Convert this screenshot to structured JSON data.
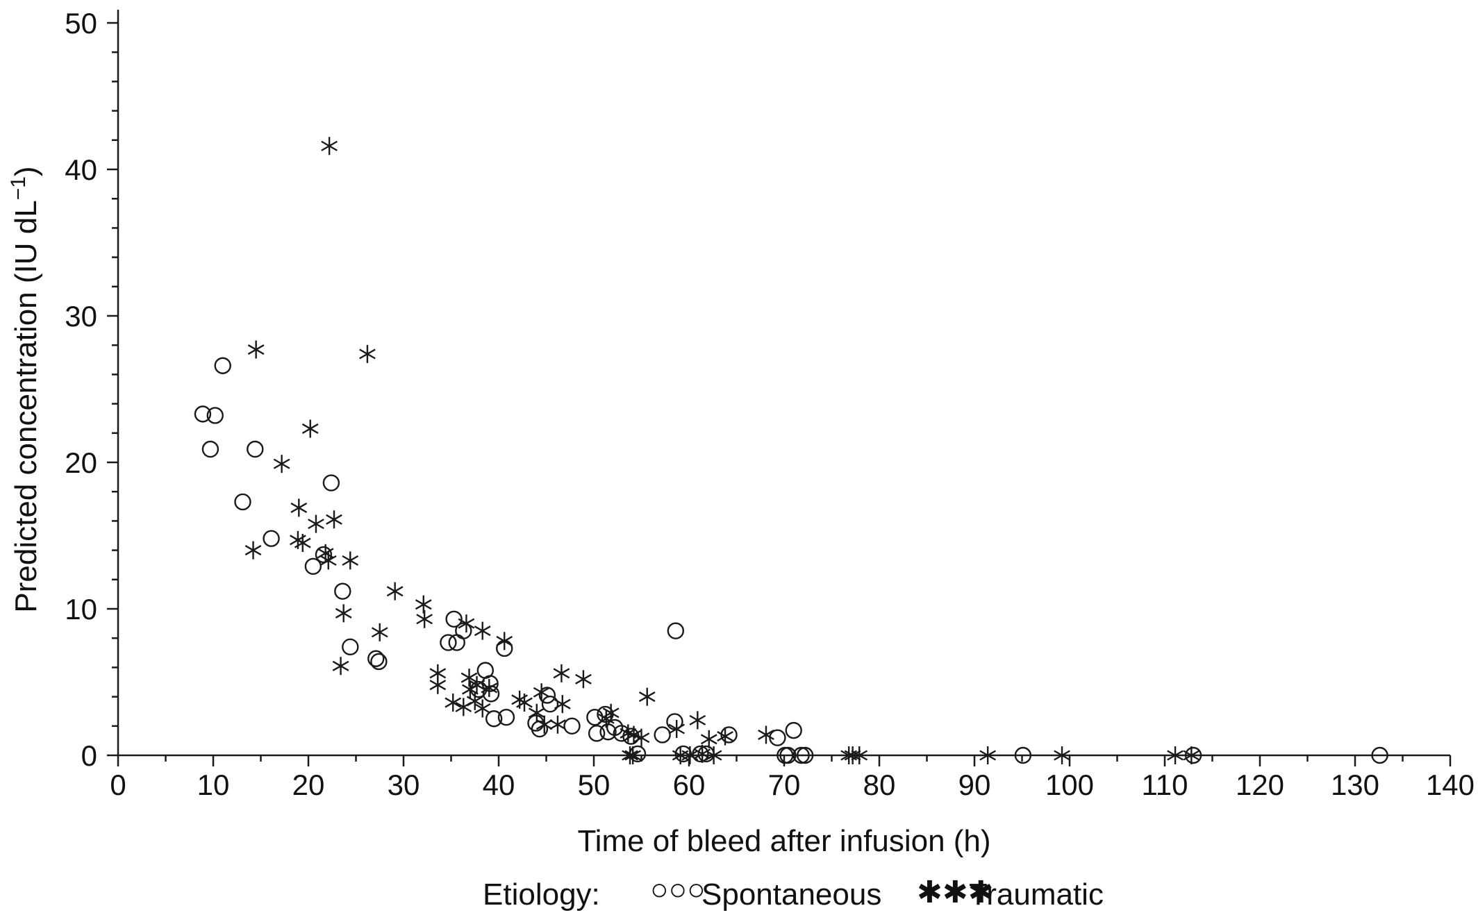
{
  "chart_data": {
    "type": "scatter",
    "title": "",
    "xlabel": "Time of bleed after infusion (h)",
    "ylabel": "Predicted concentration (IU dL",
    "ylabel_superscript": "−1",
    "ylabel_suffix": ")",
    "xlim": [
      0,
      140
    ],
    "ylim": [
      0,
      50
    ],
    "x_ticks": [
      0,
      10,
      20,
      30,
      40,
      50,
      60,
      70,
      80,
      90,
      100,
      110,
      120,
      130,
      140
    ],
    "y_ticks": [
      0,
      10,
      20,
      30,
      40,
      50
    ],
    "grid": false,
    "legend": {
      "placement": "bottom-center",
      "title": "Etiology:",
      "entries": [
        {
          "label": "Spontaneous",
          "marker_glyph": "○○○",
          "marker": "circle"
        },
        {
          "label": "Traumatic",
          "marker_glyph": "✱✱✱",
          "marker": "asterisk"
        }
      ]
    },
    "series": [
      {
        "name": "Spontaneous",
        "marker": "circle",
        "color": "#1a1a1a",
        "points": [
          [
            8.9,
            23.3
          ],
          [
            10.2,
            23.2
          ],
          [
            11.0,
            26.6
          ],
          [
            9.7,
            20.9
          ],
          [
            14.4,
            20.9
          ],
          [
            13.1,
            17.3
          ],
          [
            22.4,
            18.6
          ],
          [
            16.1,
            14.8
          ],
          [
            21.6,
            13.7
          ],
          [
            20.5,
            12.9
          ],
          [
            23.6,
            11.2
          ],
          [
            24.4,
            7.4
          ],
          [
            27.1,
            6.6
          ],
          [
            27.4,
            6.4
          ],
          [
            34.7,
            7.7
          ],
          [
            35.6,
            7.7
          ],
          [
            35.3,
            9.3
          ],
          [
            36.3,
            8.5
          ],
          [
            38.6,
            5.8
          ],
          [
            39.1,
            4.9
          ],
          [
            37.9,
            4.5
          ],
          [
            39.2,
            4.2
          ],
          [
            40.6,
            7.3
          ],
          [
            39.5,
            2.5
          ],
          [
            40.8,
            2.6
          ],
          [
            43.9,
            2.2
          ],
          [
            44.3,
            1.8
          ],
          [
            45.1,
            4.1
          ],
          [
            45.4,
            3.5
          ],
          [
            47.7,
            2.0
          ],
          [
            50.1,
            2.6
          ],
          [
            50.3,
            1.5
          ],
          [
            51.2,
            2.8
          ],
          [
            51.5,
            1.6
          ],
          [
            52.2,
            1.9
          ],
          [
            52.9,
            1.5
          ],
          [
            53.9,
            1.3
          ],
          [
            54.6,
            0.1
          ],
          [
            57.2,
            1.4
          ],
          [
            58.6,
            8.5
          ],
          [
            58.5,
            2.3
          ],
          [
            59.4,
            0.1
          ],
          [
            61.2,
            0.1
          ],
          [
            61.8,
            0.1
          ],
          [
            64.2,
            1.4
          ],
          [
            69.3,
            1.2
          ],
          [
            71.0,
            1.7
          ],
          [
            70.1,
            0.0
          ],
          [
            70.4,
            0.0
          ],
          [
            71.8,
            0.0
          ],
          [
            72.2,
            0.0
          ],
          [
            95.1,
            0.0
          ],
          [
            113.0,
            0.0
          ],
          [
            132.6,
            0.0
          ]
        ]
      },
      {
        "name": "Traumatic",
        "marker": "asterisk",
        "color": "#1a1a1a",
        "points": [
          [
            22.2,
            41.6
          ],
          [
            14.5,
            27.7
          ],
          [
            26.2,
            27.4
          ],
          [
            20.2,
            22.3
          ],
          [
            17.2,
            19.9
          ],
          [
            19.0,
            16.9
          ],
          [
            20.8,
            15.8
          ],
          [
            22.7,
            16.1
          ],
          [
            18.9,
            14.7
          ],
          [
            19.4,
            14.5
          ],
          [
            14.2,
            14.0
          ],
          [
            21.8,
            13.8
          ],
          [
            22.1,
            13.3
          ],
          [
            24.4,
            13.3
          ],
          [
            23.7,
            9.7
          ],
          [
            29.1,
            11.2
          ],
          [
            32.1,
            10.3
          ],
          [
            32.2,
            9.3
          ],
          [
            27.5,
            8.4
          ],
          [
            23.4,
            6.1
          ],
          [
            33.6,
            5.6
          ],
          [
            33.6,
            4.8
          ],
          [
            36.6,
            9.0
          ],
          [
            38.3,
            8.5
          ],
          [
            40.6,
            7.8
          ],
          [
            35.2,
            3.6
          ],
          [
            36.9,
            5.3
          ],
          [
            37.0,
            4.5
          ],
          [
            36.3,
            3.3
          ],
          [
            37.5,
            3.7
          ],
          [
            37.7,
            4.8
          ],
          [
            38.3,
            3.2
          ],
          [
            39.0,
            4.6
          ],
          [
            42.2,
            3.8
          ],
          [
            42.7,
            3.6
          ],
          [
            44.5,
            4.3
          ],
          [
            44.0,
            2.9
          ],
          [
            44.8,
            2.1
          ],
          [
            46.6,
            5.6
          ],
          [
            46.7,
            3.5
          ],
          [
            46.2,
            2.1
          ],
          [
            48.9,
            5.2
          ],
          [
            51.3,
            2.5
          ],
          [
            51.8,
            2.9
          ],
          [
            53.6,
            1.5
          ],
          [
            54.2,
            1.4
          ],
          [
            55.0,
            1.2
          ],
          [
            55.6,
            4.0
          ],
          [
            53.8,
            0.0
          ],
          [
            54.1,
            0.0
          ],
          [
            58.7,
            1.8
          ],
          [
            59.1,
            0.0
          ],
          [
            60.1,
            0.0
          ],
          [
            60.9,
            2.4
          ],
          [
            61.4,
            0.1
          ],
          [
            62.1,
            1.1
          ],
          [
            62.6,
            0.0
          ],
          [
            63.8,
            1.3
          ],
          [
            68.1,
            1.4
          ],
          [
            76.8,
            0.0
          ],
          [
            77.2,
            0.0
          ],
          [
            77.9,
            0.0
          ],
          [
            91.4,
            0.0
          ],
          [
            99.2,
            0.0
          ],
          [
            111.1,
            0.0
          ],
          [
            112.8,
            0.0
          ]
        ]
      }
    ]
  }
}
